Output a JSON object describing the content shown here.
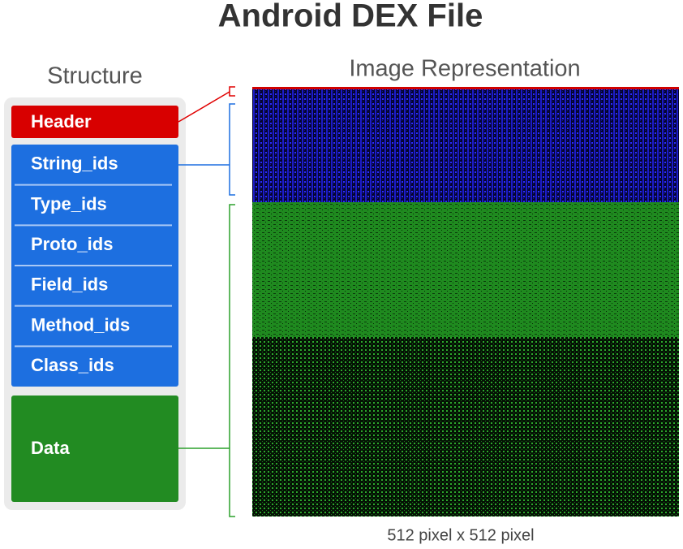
{
  "title": "Android DEX File",
  "structure": {
    "label": "Structure",
    "header": "Header",
    "ids": [
      "String_ids",
      "Type_ids",
      "Proto_ids",
      "Field_ids",
      "Method_ids",
      "Class_ids"
    ],
    "data": "Data"
  },
  "image": {
    "label": "Image Representation",
    "caption": "512 pixel x 512 pixel"
  }
}
